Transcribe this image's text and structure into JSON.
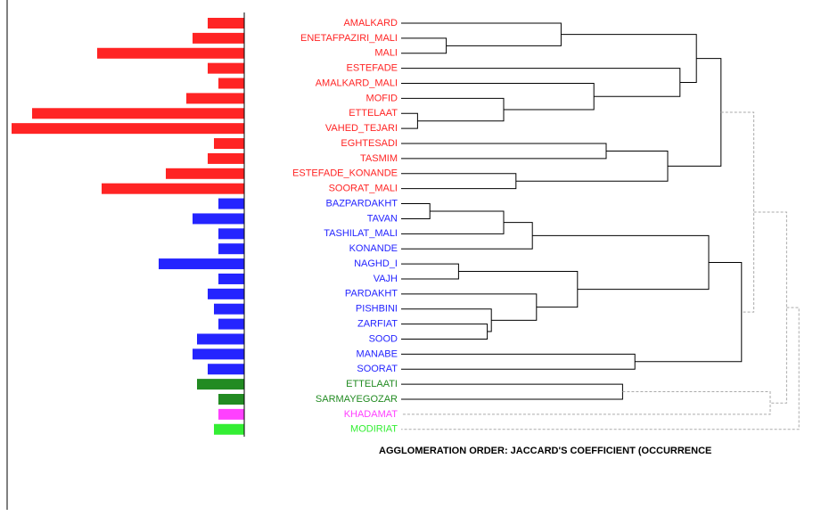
{
  "chart_data": {
    "type": "dendrogram",
    "caption": "AGGLOMERATION ORDER: JACCARD'S COEFFICIENT (OCCURRENCE",
    "categories": [
      "AMALKARD",
      "ENETAFPAZIRI_MALI",
      "MALI",
      "ESTEFADE",
      "AMALKARD_MALI",
      "MOFID",
      "ETTELAAT",
      "VAHED_TEJARI",
      "EGHTESADI",
      "TASMIM",
      "ESTEFADE_KONANDE",
      "SOORAT_MALI",
      "BAZPARDAKHT",
      "TAVAN",
      "TASHILAT_MALI",
      "KONANDE",
      "NAGHD_I",
      "VAJH",
      "PARDAKHT",
      "PISHBINI",
      "ZARFIAT",
      "SOOD",
      "MANABE",
      "SOORAT",
      "ETTELAATI",
      "SARMAYEGOZAR",
      "KHADAMAT",
      "MODIRIAT"
    ],
    "values": [
      41,
      58,
      165,
      41,
      29,
      65,
      238,
      261,
      34,
      41,
      88,
      160,
      29,
      58,
      29,
      29,
      96,
      29,
      41,
      34,
      29,
      53,
      58,
      41,
      53,
      29,
      29,
      34
    ],
    "vlim": [
      0,
      262
    ],
    "colors": [
      "#ff2424",
      "#ff2424",
      "#ff2424",
      "#ff2424",
      "#ff2424",
      "#ff2424",
      "#ff2424",
      "#ff2424",
      "#ff2424",
      "#ff2424",
      "#ff2424",
      "#ff2424",
      "#2424ff",
      "#2424ff",
      "#2424ff",
      "#2424ff",
      "#2424ff",
      "#2424ff",
      "#2424ff",
      "#2424ff",
      "#2424ff",
      "#2424ff",
      "#2424ff",
      "#2424ff",
      "#228b22",
      "#228b22",
      "#ff40ff",
      "#33ee33"
    ],
    "dlim": [
      0,
      1
    ],
    "merges": [
      {
        "children": [
          2,
          1
        ],
        "height": 0.11,
        "style": "solid"
      },
      {
        "children": [
          0,
          28
        ],
        "height": 0.39,
        "style": "solid"
      },
      {
        "children": [
          6,
          7
        ],
        "height": 0.04,
        "style": "solid"
      },
      {
        "children": [
          5,
          30
        ],
        "height": 0.25,
        "style": "solid"
      },
      {
        "children": [
          4,
          31
        ],
        "height": 0.47,
        "style": "solid"
      },
      {
        "children": [
          3,
          32
        ],
        "height": 0.68,
        "style": "solid"
      },
      {
        "children": [
          29,
          33
        ],
        "height": 0.72,
        "style": "solid"
      },
      {
        "children": [
          8,
          9
        ],
        "height": 0.5,
        "style": "solid"
      },
      {
        "children": [
          10,
          11
        ],
        "height": 0.28,
        "style": "solid"
      },
      {
        "children": [
          35,
          36
        ],
        "height": 0.65,
        "style": "solid"
      },
      {
        "children": [
          34,
          37
        ],
        "height": 0.78,
        "style": "solid"
      },
      {
        "children": [
          12,
          13
        ],
        "height": 0.07,
        "style": "solid"
      },
      {
        "children": [
          39,
          14
        ],
        "height": 0.25,
        "style": "solid"
      },
      {
        "children": [
          40,
          15
        ],
        "height": 0.32,
        "style": "solid"
      },
      {
        "children": [
          16,
          17
        ],
        "height": 0.14,
        "style": "solid"
      },
      {
        "children": [
          20,
          21
        ],
        "height": 0.21,
        "style": "solid"
      },
      {
        "children": [
          19,
          43
        ],
        "height": 0.22,
        "style": "solid"
      },
      {
        "children": [
          18,
          44
        ],
        "height": 0.33,
        "style": "solid"
      },
      {
        "children": [
          42,
          45
        ],
        "height": 0.43,
        "style": "solid"
      },
      {
        "children": [
          41,
          46
        ],
        "height": 0.75,
        "style": "solid"
      },
      {
        "children": [
          22,
          23
        ],
        "height": 0.57,
        "style": "solid"
      },
      {
        "children": [
          47,
          48
        ],
        "height": 0.83,
        "style": "solid"
      },
      {
        "children": [
          38,
          49
        ],
        "height": 0.86,
        "style": "dashed"
      },
      {
        "children": [
          24,
          25
        ],
        "height": 0.54,
        "style": "solid"
      },
      {
        "children": [
          51,
          26
        ],
        "height": 0.9,
        "style": "dashed"
      },
      {
        "children": [
          50,
          52
        ],
        "height": 0.94,
        "style": "dashed"
      },
      {
        "children": [
          53,
          27
        ],
        "height": 0.97,
        "style": "dashed"
      }
    ]
  }
}
